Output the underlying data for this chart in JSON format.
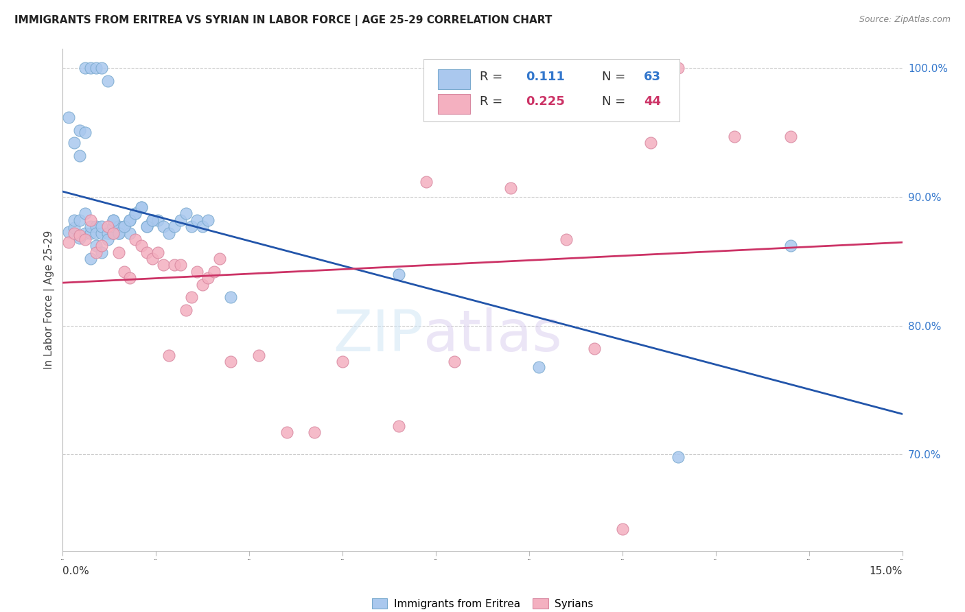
{
  "title": "IMMIGRANTS FROM ERITREA VS SYRIAN IN LABOR FORCE | AGE 25-29 CORRELATION CHART",
  "source": "Source: ZipAtlas.com",
  "ylabel": "In Labor Force | Age 25-29",
  "xmin": 0.0,
  "xmax": 0.15,
  "ymin": 0.625,
  "ymax": 1.015,
  "right_yticks": [
    0.7,
    0.8,
    0.9,
    1.0
  ],
  "right_yticklabels": [
    "70.0%",
    "80.0%",
    "90.0%",
    "100.0%"
  ],
  "eritrea_color": "#aac8ee",
  "eritrea_edge_color": "#7aaace",
  "syrian_color": "#f4b0c0",
  "syrian_edge_color": "#d888a0",
  "eritrea_line_color": "#2255aa",
  "syrian_line_color": "#cc3366",
  "n_eritrea": 63,
  "n_syrian": 44,
  "r_eritrea": "0.111",
  "r_syrian": "0.225",
  "eritrea_x": [
    0.001,
    0.002,
    0.002,
    0.003,
    0.003,
    0.004,
    0.004,
    0.005,
    0.005,
    0.005,
    0.006,
    0.006,
    0.006,
    0.007,
    0.007,
    0.007,
    0.008,
    0.008,
    0.009,
    0.009,
    0.009,
    0.01,
    0.01,
    0.011,
    0.012,
    0.012,
    0.013,
    0.014,
    0.015,
    0.016,
    0.017,
    0.018,
    0.019,
    0.02,
    0.021,
    0.022,
    0.023,
    0.024,
    0.025,
    0.026,
    0.001,
    0.002,
    0.003,
    0.004,
    0.005,
    0.006,
    0.007,
    0.008,
    0.009,
    0.01,
    0.011,
    0.012,
    0.013,
    0.014,
    0.015,
    0.016,
    0.003,
    0.004,
    0.03,
    0.06,
    0.085,
    0.11,
    0.13
  ],
  "eritrea_y": [
    0.873,
    0.876,
    0.882,
    0.868,
    0.882,
    0.872,
    0.887,
    0.872,
    0.877,
    0.852,
    0.862,
    0.877,
    0.872,
    0.857,
    0.872,
    0.877,
    0.872,
    0.867,
    0.872,
    0.877,
    0.882,
    0.872,
    0.877,
    0.877,
    0.872,
    0.882,
    0.887,
    0.892,
    0.877,
    0.882,
    0.882,
    0.877,
    0.872,
    0.877,
    0.882,
    0.887,
    0.877,
    0.882,
    0.877,
    0.882,
    0.962,
    0.942,
    0.932,
    1.0,
    1.0,
    1.0,
    1.0,
    0.99,
    0.882,
    0.872,
    0.877,
    0.882,
    0.887,
    0.892,
    0.877,
    0.882,
    0.952,
    0.95,
    0.822,
    0.84,
    0.768,
    0.698,
    0.862
  ],
  "syrian_x": [
    0.001,
    0.002,
    0.003,
    0.004,
    0.005,
    0.006,
    0.007,
    0.008,
    0.009,
    0.01,
    0.011,
    0.012,
    0.013,
    0.014,
    0.015,
    0.016,
    0.017,
    0.018,
    0.019,
    0.02,
    0.021,
    0.022,
    0.023,
    0.024,
    0.025,
    0.026,
    0.027,
    0.028,
    0.03,
    0.035,
    0.04,
    0.045,
    0.05,
    0.06,
    0.065,
    0.07,
    0.08,
    0.09,
    0.095,
    0.1,
    0.105,
    0.11,
    0.12,
    0.13
  ],
  "syrian_y": [
    0.865,
    0.872,
    0.87,
    0.867,
    0.882,
    0.857,
    0.862,
    0.877,
    0.872,
    0.857,
    0.842,
    0.837,
    0.867,
    0.862,
    0.857,
    0.852,
    0.857,
    0.847,
    0.777,
    0.847,
    0.847,
    0.812,
    0.822,
    0.842,
    0.832,
    0.837,
    0.842,
    0.852,
    0.772,
    0.777,
    0.717,
    0.717,
    0.772,
    0.722,
    0.912,
    0.772,
    0.907,
    0.867,
    0.782,
    0.642,
    0.942,
    1.0,
    0.947,
    0.947
  ]
}
